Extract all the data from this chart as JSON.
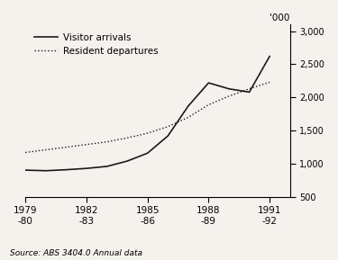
{
  "years": [
    1979,
    1980,
    1981,
    1982,
    1983,
    1984,
    1985,
    1986,
    1987,
    1988,
    1989,
    1990,
    1991
  ],
  "visitor_arrivals": [
    904,
    895,
    910,
    930,
    960,
    1040,
    1160,
    1420,
    1870,
    2220,
    2130,
    2080,
    2620
  ],
  "resident_departures": [
    1170,
    1210,
    1250,
    1290,
    1330,
    1390,
    1460,
    1560,
    1700,
    1890,
    2020,
    2130,
    2230
  ],
  "x_tick_positions": [
    1979,
    1982,
    1985,
    1988,
    1991
  ],
  "x_tick_labels_top": [
    "1979",
    "1982",
    "1985",
    "1988",
    "1991"
  ],
  "x_tick_labels_bot": [
    "-80",
    "-83",
    "-86",
    "-89",
    "-92"
  ],
  "ylim": [
    500,
    3100
  ],
  "y_ticks": [
    500,
    1000,
    1500,
    2000,
    2500,
    3000
  ],
  "xlim": [
    1979,
    1992
  ],
  "line_color": "#1a1a1a",
  "dot_color": "#1a1a1a",
  "background_color": "#f5f2ee",
  "plot_bg_color": "#ffffff",
  "ylabel_top": "'000",
  "source_text": "Source: ABS 3404.0 Annual data",
  "legend_visitor": "Visitor arrivals",
  "legend_resident": "Resident departures"
}
